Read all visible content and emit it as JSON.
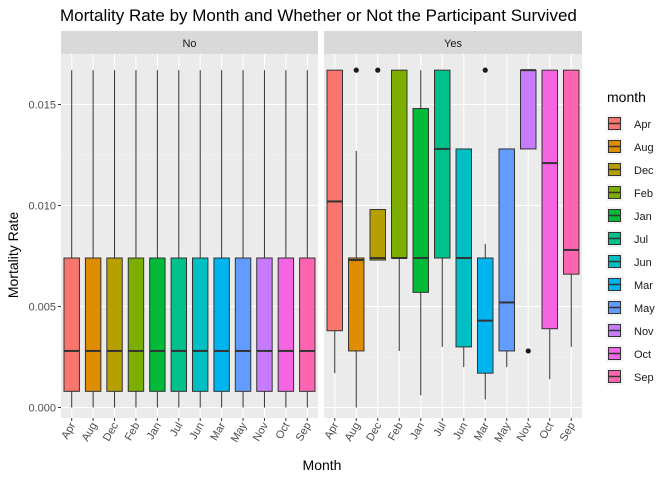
{
  "chart_data": {
    "type": "boxplot",
    "title": "Mortality Rate by Month and Whether or Not the Participant Survived",
    "xlabel": "Month",
    "ylabel": "Mortality Rate",
    "ylim": [
      0,
      0.017
    ],
    "yticks": [
      0.0,
      0.005,
      0.01,
      0.015
    ],
    "ytick_labels": [
      "0.000",
      "0.005",
      "0.010",
      "0.015"
    ],
    "categories": [
      "Apr",
      "Aug",
      "Dec",
      "Feb",
      "Jan",
      "Jul",
      "Jun",
      "Mar",
      "May",
      "Nov",
      "Oct",
      "Sep"
    ],
    "legend": {
      "title": "month",
      "position": "right"
    },
    "grid": true,
    "colors": {
      "Apr": "#F8766D",
      "Aug": "#DE8C00",
      "Dec": "#B79F00",
      "Feb": "#7CAE00",
      "Jan": "#00BA38",
      "Jul": "#00C08B",
      "Jun": "#00BFC4",
      "Mar": "#00B4F0",
      "May": "#619CFF",
      "Nov": "#C77CFF",
      "Oct": "#F564E3",
      "Sep": "#FF64B0"
    },
    "facets": [
      {
        "label": "No",
        "boxes": [
          {
            "month": "Apr",
            "min": 0.0,
            "q1": 0.0008,
            "median": 0.0028,
            "q3": 0.0074,
            "max": 0.0167,
            "outliers": []
          },
          {
            "month": "Aug",
            "min": 0.0,
            "q1": 0.0008,
            "median": 0.0028,
            "q3": 0.0074,
            "max": 0.0167,
            "outliers": []
          },
          {
            "month": "Dec",
            "min": 0.0,
            "q1": 0.0008,
            "median": 0.0028,
            "q3": 0.0074,
            "max": 0.0167,
            "outliers": []
          },
          {
            "month": "Feb",
            "min": 0.0,
            "q1": 0.0008,
            "median": 0.0028,
            "q3": 0.0074,
            "max": 0.0167,
            "outliers": []
          },
          {
            "month": "Jan",
            "min": 0.0,
            "q1": 0.0008,
            "median": 0.0028,
            "q3": 0.0074,
            "max": 0.0167,
            "outliers": []
          },
          {
            "month": "Jul",
            "min": 0.0,
            "q1": 0.0008,
            "median": 0.0028,
            "q3": 0.0074,
            "max": 0.0167,
            "outliers": []
          },
          {
            "month": "Jun",
            "min": 0.0,
            "q1": 0.0008,
            "median": 0.0028,
            "q3": 0.0074,
            "max": 0.0167,
            "outliers": []
          },
          {
            "month": "Mar",
            "min": 0.0,
            "q1": 0.0008,
            "median": 0.0028,
            "q3": 0.0074,
            "max": 0.0167,
            "outliers": []
          },
          {
            "month": "May",
            "min": 0.0,
            "q1": 0.0008,
            "median": 0.0028,
            "q3": 0.0074,
            "max": 0.0167,
            "outliers": []
          },
          {
            "month": "Nov",
            "min": 0.0,
            "q1": 0.0008,
            "median": 0.0028,
            "q3": 0.0074,
            "max": 0.0167,
            "outliers": []
          },
          {
            "month": "Oct",
            "min": 0.0,
            "q1": 0.0008,
            "median": 0.0028,
            "q3": 0.0074,
            "max": 0.0167,
            "outliers": []
          },
          {
            "month": "Sep",
            "min": 0.0,
            "q1": 0.0008,
            "median": 0.0028,
            "q3": 0.0074,
            "max": 0.0167,
            "outliers": []
          }
        ]
      },
      {
        "label": "Yes",
        "boxes": [
          {
            "month": "Apr",
            "min": 0.0017,
            "q1": 0.0038,
            "median": 0.0102,
            "q3": 0.0167,
            "max": 0.0167,
            "outliers": []
          },
          {
            "month": "Aug",
            "min": 0.0,
            "q1": 0.0028,
            "median": 0.0073,
            "q3": 0.0074,
            "max": 0.0127,
            "outliers": [
              0.0167
            ]
          },
          {
            "month": "Dec",
            "min": 0.0073,
            "q1": 0.0073,
            "median": 0.0074,
            "q3": 0.0098,
            "max": 0.0098,
            "outliers": [
              0.0167
            ]
          },
          {
            "month": "Feb",
            "min": 0.0028,
            "q1": 0.0074,
            "median": 0.0074,
            "q3": 0.0167,
            "max": 0.0167,
            "outliers": []
          },
          {
            "month": "Jan",
            "min": 0.0006,
            "q1": 0.0057,
            "median": 0.0074,
            "q3": 0.0148,
            "max": 0.0167,
            "outliers": []
          },
          {
            "month": "Jul",
            "min": 0.003,
            "q1": 0.0074,
            "median": 0.0128,
            "q3": 0.0167,
            "max": 0.0167,
            "outliers": []
          },
          {
            "month": "Jun",
            "min": 0.002,
            "q1": 0.003,
            "median": 0.0074,
            "q3": 0.0128,
            "max": 0.0128,
            "outliers": []
          },
          {
            "month": "Mar",
            "min": 0.0004,
            "q1": 0.0017,
            "median": 0.0043,
            "q3": 0.0074,
            "max": 0.0081,
            "outliers": [
              0.0167
            ]
          },
          {
            "month": "May",
            "min": 0.002,
            "q1": 0.0028,
            "median": 0.0052,
            "q3": 0.0128,
            "max": 0.0128,
            "outliers": []
          },
          {
            "month": "Nov",
            "min": 0.0128,
            "q1": 0.0128,
            "median": 0.0167,
            "q3": 0.0167,
            "max": 0.0167,
            "outliers": [
              0.0028
            ]
          },
          {
            "month": "Oct",
            "min": 0.0014,
            "q1": 0.0039,
            "median": 0.0121,
            "q3": 0.0167,
            "max": 0.0167,
            "outliers": []
          },
          {
            "month": "Sep",
            "min": 0.003,
            "q1": 0.0066,
            "median": 0.0078,
            "q3": 0.0167,
            "max": 0.0167,
            "outliers": []
          }
        ]
      }
    ]
  }
}
